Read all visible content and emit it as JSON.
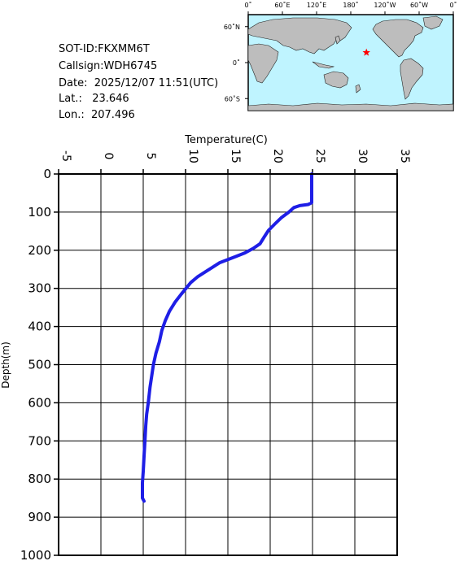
{
  "info": {
    "sot_id": "SOT-ID:FKXMM6T",
    "callsign": "Callsign:WDH6745",
    "date": "Date:  2025/12/07 11:51(UTC)",
    "lat": "Lat.:   23.646",
    "lon": "Lon.:  207.496"
  },
  "map": {
    "lon_labels": [
      "0˚",
      "60˚E",
      "120˚E",
      "180˚",
      "120˚W",
      "60˚W",
      "0˚"
    ],
    "lat_labels": [
      "60˚N",
      "0˚",
      "60˚S"
    ],
    "ocean_color": "#bff4ff",
    "land_color": "#bdbdbd",
    "marker": {
      "name": "red-star-icon",
      "lon": 207.496,
      "lat": 23.646,
      "color": "#ff0000"
    }
  },
  "chart_data": {
    "type": "line",
    "title": "",
    "xlabel": "Temperature(C)",
    "ylabel": "Depth(m)",
    "xlim": [
      -5,
      35
    ],
    "ylim": [
      0,
      1000
    ],
    "x_ticks": [
      -5,
      0,
      5,
      10,
      15,
      20,
      25,
      30,
      35
    ],
    "x_tick_labels": [
      "-5",
      "0",
      "5",
      "10",
      "15",
      "20",
      "25",
      "30",
      "35"
    ],
    "y_ticks": [
      0,
      100,
      200,
      300,
      400,
      500,
      600,
      700,
      800,
      900,
      1000
    ],
    "y_tick_labels": [
      "0",
      "100",
      "200",
      "300",
      "400",
      "500",
      "600",
      "700",
      "800",
      "900",
      "1000"
    ],
    "grid": true,
    "x_axis_position": "top",
    "y_inverted": true,
    "series": [
      {
        "color": "#1e1ee6",
        "points": [
          [
            24.9,
            0
          ],
          [
            24.9,
            30
          ],
          [
            24.9,
            60
          ],
          [
            24.9,
            75
          ],
          [
            24.5,
            80
          ],
          [
            23.5,
            83
          ],
          [
            22.8,
            88
          ],
          [
            22.2,
            100
          ],
          [
            21.3,
            115
          ],
          [
            20.6,
            130
          ],
          [
            19.8,
            148
          ],
          [
            19.3,
            165
          ],
          [
            18.8,
            183
          ],
          [
            18.0,
            195
          ],
          [
            17.0,
            207
          ],
          [
            15.5,
            220
          ],
          [
            14.0,
            233
          ],
          [
            12.8,
            250
          ],
          [
            11.4,
            270
          ],
          [
            10.6,
            285
          ],
          [
            10.2,
            296
          ],
          [
            9.5,
            315
          ],
          [
            8.8,
            335
          ],
          [
            8.1,
            360
          ],
          [
            7.6,
            385
          ],
          [
            7.2,
            410
          ],
          [
            6.9,
            440
          ],
          [
            6.5,
            470
          ],
          [
            6.2,
            500
          ],
          [
            6.0,
            530
          ],
          [
            5.8,
            560
          ],
          [
            5.6,
            600
          ],
          [
            5.4,
            630
          ],
          [
            5.3,
            660
          ],
          [
            5.2,
            700
          ],
          [
            5.1,
            740
          ],
          [
            5.0,
            780
          ],
          [
            4.9,
            810
          ],
          [
            4.9,
            830
          ],
          [
            4.9,
            850
          ],
          [
            5.1,
            858
          ]
        ]
      }
    ]
  }
}
